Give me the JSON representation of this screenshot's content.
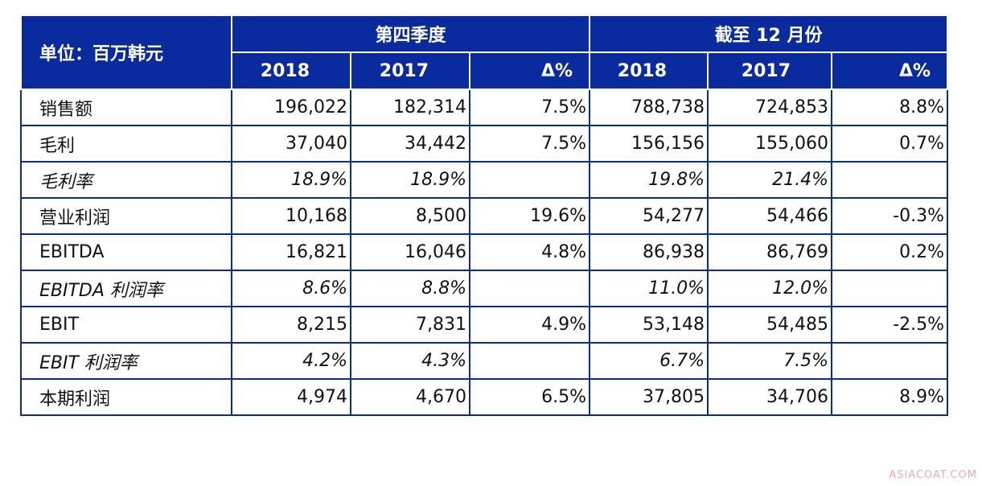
{
  "table": {
    "unit_label": "单位：百万韩元",
    "group_quarter": "第四季度",
    "group_full_year": "截至 12 月份",
    "year_headers": [
      "2018",
      "2017",
      "Δ%",
      "2018",
      "2017",
      "Δ%"
    ],
    "rows": [
      {
        "label": "销售额",
        "italic": false,
        "cells": [
          "196,022",
          "182,314",
          "7.5%",
          "788,738",
          "724,853",
          "8.8%"
        ]
      },
      {
        "label": "毛利",
        "italic": false,
        "cells": [
          "37,040",
          "34,442",
          "7.5%",
          "156,156",
          "155,060",
          "0.7%"
        ]
      },
      {
        "label": "毛利率",
        "italic": true,
        "cells": [
          "18.9%",
          "18.9%",
          "",
          "19.8%",
          "21.4%",
          ""
        ]
      },
      {
        "label": "营业利润",
        "italic": false,
        "cells": [
          "10,168",
          "8,500",
          "19.6%",
          "54,277",
          "54,466",
          "-0.3%"
        ]
      },
      {
        "label": "EBITDA",
        "italic": false,
        "cells": [
          "16,821",
          "16,046",
          "4.8%",
          "86,938",
          "86,769",
          "0.2%"
        ]
      },
      {
        "label": "EBITDA 利润率",
        "italic": true,
        "cells": [
          "8.6%",
          "8.8%",
          "",
          "11.0%",
          "12.0%",
          ""
        ]
      },
      {
        "label": "EBIT",
        "italic": false,
        "cells": [
          "8,215",
          "7,831",
          "4.9%",
          "53,148",
          "54,485",
          "-2.5%"
        ]
      },
      {
        "label": "EBIT 利润率",
        "italic": true,
        "cells": [
          "4.2%",
          "4.3%",
          "",
          "6.7%",
          "7.5%",
          ""
        ]
      },
      {
        "label": "本期利润",
        "italic": false,
        "cells": [
          "4,974",
          "4,670",
          "6.5%",
          "37,805",
          "34,706",
          "8.9%"
        ]
      }
    ]
  },
  "watermark": "ASIACOAT.COM",
  "colors": {
    "header_bg": "#0a2b9e",
    "header_text": "#ffffff",
    "border": "#0a2b9e",
    "watermark": "#e8a8bf"
  }
}
